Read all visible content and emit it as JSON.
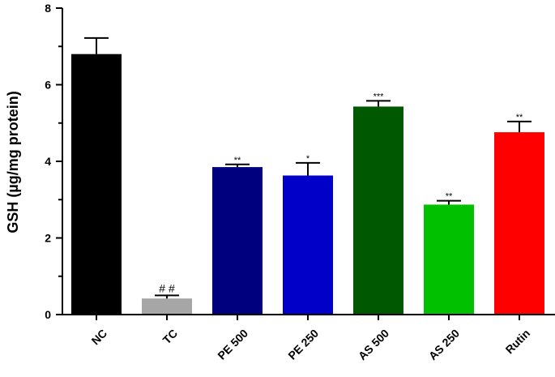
{
  "chart_data": {
    "type": "bar",
    "ylabel": "GSH (µg/mg protein)",
    "ylim": [
      0,
      8
    ],
    "yticks": [
      "0",
      "2",
      "4",
      "6",
      "8"
    ],
    "categories": [
      "NC",
      "TC",
      "PE 500",
      "PE 250",
      "AS 500",
      "AS 250",
      "Rutin"
    ],
    "values": [
      6.8,
      0.42,
      3.85,
      3.63,
      5.43,
      2.87,
      4.76
    ],
    "errors": [
      0.42,
      0.08,
      0.07,
      0.33,
      0.15,
      0.1,
      0.28
    ],
    "annotations": [
      "",
      "# #",
      "**",
      "*",
      "***",
      "**",
      "**"
    ],
    "colors": [
      "#000000",
      "#a6a6a6",
      "#00007f",
      "#0000c8",
      "#005900",
      "#00c000",
      "#ff0000"
    ],
    "grid": false
  }
}
